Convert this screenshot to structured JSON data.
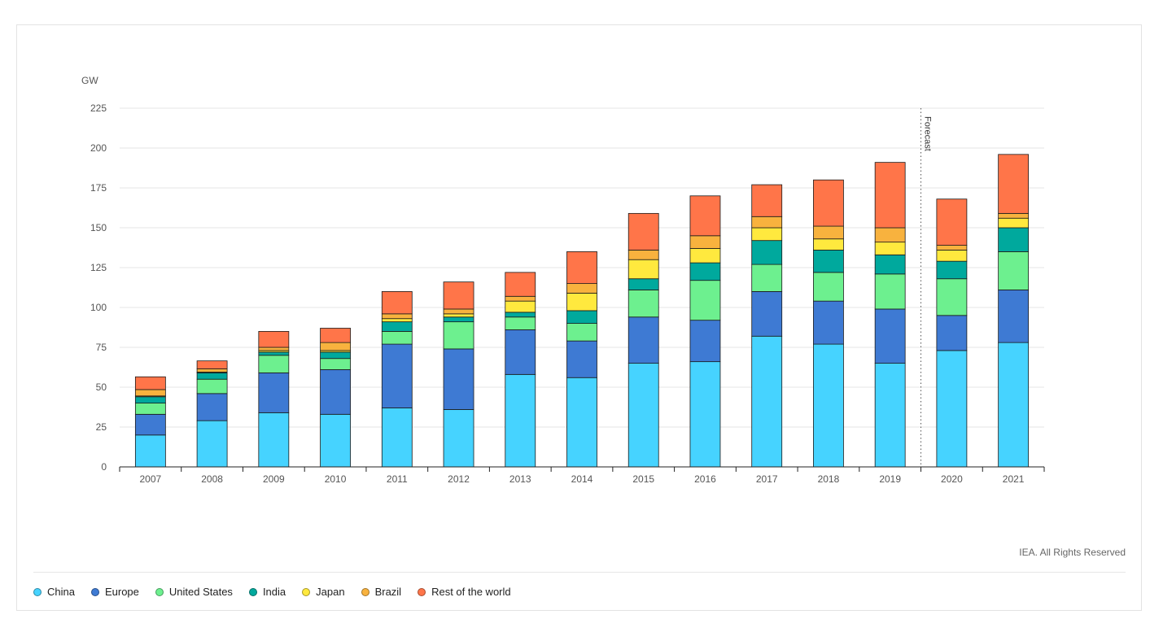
{
  "chart_data": {
    "type": "bar",
    "stacked": true,
    "ylabel": "GW",
    "ylim": [
      0,
      225
    ],
    "yticks": [
      0,
      25,
      50,
      75,
      100,
      125,
      150,
      175,
      200,
      225
    ],
    "grid": true,
    "categories": [
      "2007",
      "2008",
      "2009",
      "2010",
      "2011",
      "2012",
      "2013",
      "2014",
      "2015",
      "2016",
      "2017",
      "2018",
      "2019",
      "2020",
      "2021"
    ],
    "series": [
      {
        "name": "China",
        "color": "#46d3ff",
        "values": [
          20,
          29,
          34,
          33,
          37,
          36,
          58,
          56,
          65,
          66,
          82,
          77,
          65,
          73,
          78
        ]
      },
      {
        "name": "Europe",
        "color": "#3e7ad3",
        "values": [
          13,
          17,
          25,
          28,
          40,
          38,
          28,
          23,
          29,
          26,
          28,
          27,
          34,
          22,
          33
        ]
      },
      {
        "name": "United States",
        "color": "#6df08f",
        "values": [
          7,
          9,
          11,
          7,
          8,
          17,
          8,
          11,
          17,
          25,
          17,
          18,
          22,
          23,
          24
        ]
      },
      {
        "name": "India",
        "color": "#00a99d",
        "values": [
          4,
          4,
          2,
          4,
          6,
          3,
          3,
          8,
          7,
          11,
          15,
          14,
          12,
          11,
          15
        ]
      },
      {
        "name": "Japan",
        "color": "#ffe93e",
        "values": [
          0.5,
          0.5,
          1,
          1,
          2,
          2,
          7,
          11,
          12,
          9,
          8,
          7,
          8,
          7,
          6
        ]
      },
      {
        "name": "Brazil",
        "color": "#f8b23e",
        "values": [
          4,
          2,
          2,
          5,
          3,
          3,
          3,
          6,
          6,
          8,
          7,
          8,
          9,
          3,
          3
        ]
      },
      {
        "name": "Rest of the world",
        "color": "#ff7549",
        "values": [
          8,
          5,
          10,
          9,
          14,
          17,
          15,
          20,
          23,
          25,
          20,
          29,
          41,
          29,
          37
        ]
      }
    ],
    "annotation": {
      "text": "Forecast",
      "between": [
        "2019",
        "2020"
      ]
    },
    "credit": "IEA. All Rights Reserved"
  }
}
